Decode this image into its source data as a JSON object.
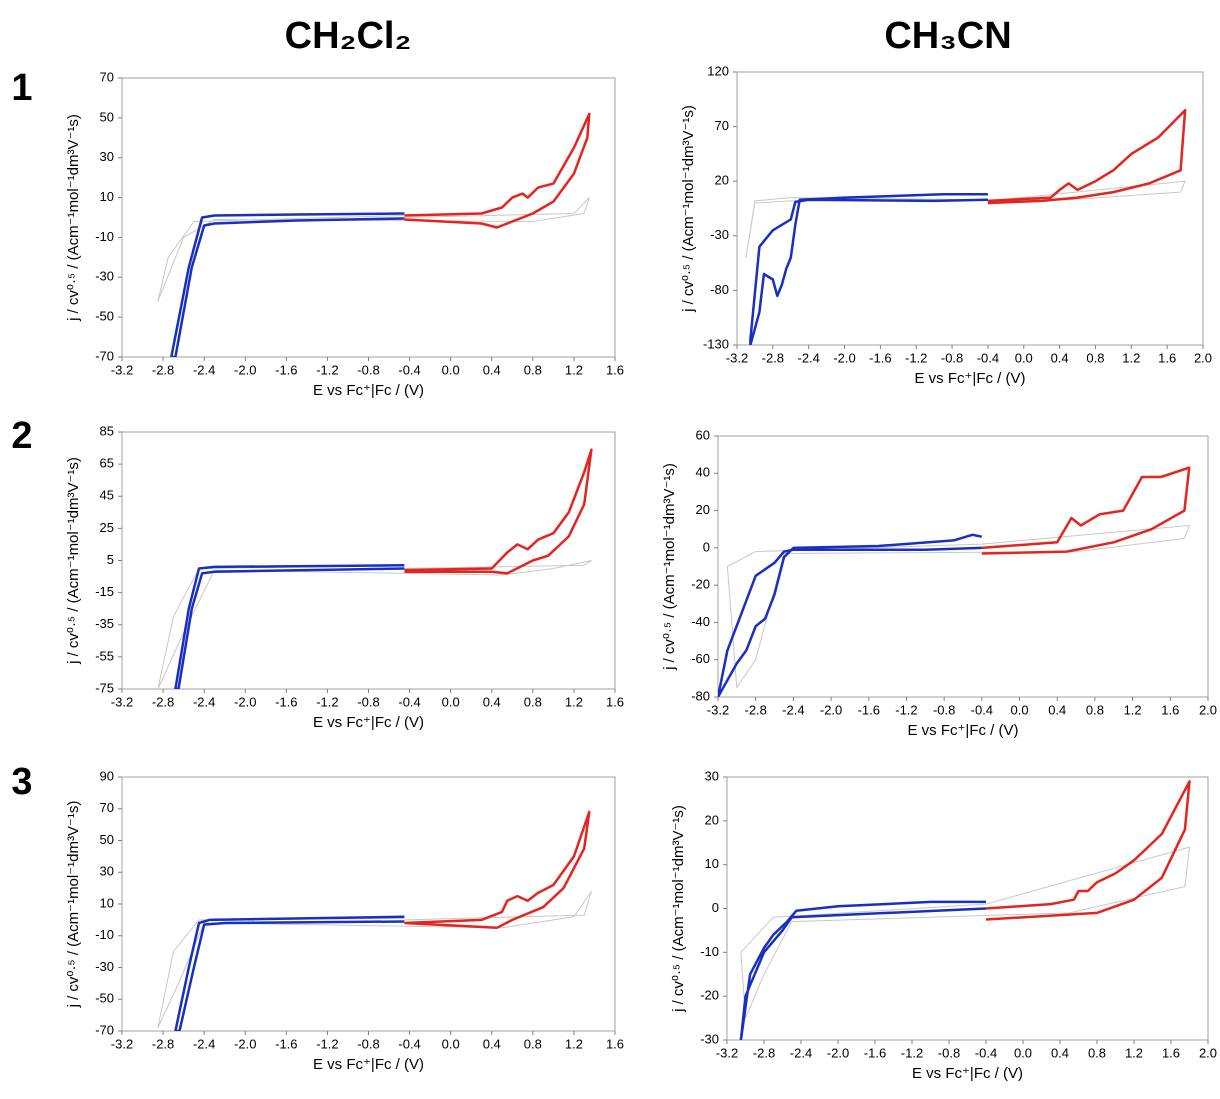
{
  "columns": [
    "CH₂Cl₂",
    "CH₃CN"
  ],
  "rows": [
    "1",
    "2",
    "3"
  ],
  "chart_data": [
    {
      "type": "line",
      "xlabel": "E vs Fc⁺|Fc / (V)",
      "ylabel": "j / cv⁰·⁵ / (Acm⁻¹mol⁻¹dm³V⁻¹s)",
      "xlim": [
        -3.2,
        1.6
      ],
      "ylim": [
        -70,
        70
      ],
      "xticks": [
        -3.2,
        -2.8,
        -2.4,
        {
          "value": -2,
          "label": "-2.0"
        },
        -1.6,
        -1.2,
        -0.8,
        -0.4,
        {
          "value": 0,
          "label": "0.0"
        },
        0.4,
        0.8,
        1.2,
        1.6
      ],
      "yticks": [
        -70,
        -50,
        -30,
        -10,
        10,
        30,
        50,
        70
      ],
      "series": [
        {
          "color": "#c8c8c8",
          "line_width": 1,
          "x": [
            -0.45,
            1.2,
            1.35,
            1.3,
            0.8,
            -2.3,
            -2.6,
            -2.85,
            -2.75,
            -2.5,
            -0.45
          ],
          "values": [
            0,
            2,
            10,
            2,
            -2,
            -1,
            -10,
            -42,
            -20,
            -2,
            1
          ]
        },
        {
          "color": "#1a2fc0",
          "line_width": 2.5,
          "x": [
            -0.45,
            -1.5,
            -2.3,
            -2.42,
            -2.55,
            -2.72,
            -2.68,
            -2.52,
            -2.4,
            -2.3,
            -1.5,
            -0.45
          ],
          "values": [
            2,
            1.5,
            1,
            0,
            -25,
            -70,
            -70,
            -25,
            -4,
            -3,
            -1.5,
            -0.5
          ]
        },
        {
          "color": "#e3241f",
          "line_width": 2.5,
          "x": [
            -0.45,
            0.3,
            0.5,
            0.6,
            0.7,
            0.75,
            0.85,
            1.0,
            1.2,
            1.35,
            1.33,
            1.2,
            1.0,
            0.8,
            0.6,
            0.45,
            0.3,
            -0.45
          ],
          "values": [
            1,
            2,
            5,
            10,
            12,
            10,
            15,
            17,
            35,
            52,
            40,
            22,
            8,
            2,
            -2,
            -5,
            -3,
            -1
          ]
        }
      ]
    },
    {
      "type": "line",
      "xlabel": "E vs Fc⁺|Fc / (V)",
      "ylabel": "j / cv⁰·⁵ / (Acm⁻¹mol⁻¹dm³V⁻¹s)",
      "xlim": [
        -3.2,
        2
      ],
      "ylim": [
        -130,
        120
      ],
      "xticks": [
        -3.2,
        -2.8,
        -2.4,
        {
          "value": -2,
          "label": "-2.0"
        },
        -1.6,
        -1.2,
        -0.8,
        -0.4,
        {
          "value": 0,
          "label": "0.0"
        },
        0.4,
        0.8,
        1.2,
        1.6,
        {
          "value": 2,
          "label": "2.0"
        }
      ],
      "yticks": [
        -130,
        -80,
        -30,
        20,
        70,
        120
      ],
      "series": [
        {
          "color": "#c8c8c8",
          "line_width": 1,
          "x": [
            -0.4,
            1.8,
            1.75,
            0.5,
            -2.6,
            -3.0,
            -3.1,
            -3.0,
            -2.6,
            -0.4
          ],
          "values": [
            2,
            20,
            10,
            3,
            2,
            0,
            -50,
            2,
            5,
            3
          ]
        },
        {
          "color": "#1a2fc0",
          "line_width": 2.5,
          "x": [
            -0.4,
            -0.9,
            -2.0,
            -2.5,
            -2.55,
            -2.6,
            -2.65,
            -2.7,
            -2.75,
            -2.8,
            -2.9,
            -2.95,
            -3.05,
            -3.05,
            -2.95,
            -2.8,
            -2.6,
            -2.55,
            -2.4,
            -1.0,
            -0.4
          ],
          "values": [
            8,
            8,
            5,
            3,
            -20,
            -50,
            -60,
            -75,
            -85,
            -70,
            -65,
            -100,
            -130,
            -125,
            -40,
            -25,
            -15,
            1,
            3,
            2,
            3
          ]
        },
        {
          "color": "#e3241f",
          "line_width": 2.5,
          "x": [
            -0.4,
            0.3,
            0.4,
            0.5,
            0.6,
            0.8,
            0.9,
            1.0,
            1.2,
            1.5,
            1.8,
            1.75,
            1.4,
            1.0,
            0.6,
            0.2,
            -0.4
          ],
          "values": [
            2,
            5,
            12,
            18,
            12,
            20,
            25,
            30,
            45,
            60,
            85,
            30,
            18,
            10,
            5,
            2,
            0
          ]
        }
      ]
    },
    {
      "type": "line",
      "xlabel": "E vs Fc⁺|Fc / (V)",
      "ylabel": "j / cv⁰·⁵ / (Acm⁻¹mol⁻¹dm³V⁻¹s)",
      "xlim": [
        -3.2,
        1.6
      ],
      "ylim": [
        -75,
        85
      ],
      "xticks": [
        -3.2,
        -2.8,
        -2.4,
        {
          "value": -2,
          "label": "-2.0"
        },
        -1.6,
        -1.2,
        -0.8,
        -0.4,
        {
          "value": 0,
          "label": "0.0"
        },
        0.4,
        0.8,
        1.2,
        1.6
      ],
      "yticks": [
        -75,
        -55,
        -35,
        -15,
        5,
        25,
        45,
        65,
        85
      ],
      "series": [
        {
          "color": "#c8c8c8",
          "line_width": 1,
          "x": [
            -0.45,
            1.3,
            1.37,
            1.0,
            0.5,
            -2.3,
            -2.6,
            -2.85,
            -2.7,
            -2.45,
            -0.45
          ],
          "values": [
            0,
            2,
            5,
            0,
            -4,
            -1,
            -40,
            -75,
            -30,
            0,
            2
          ]
        },
        {
          "color": "#1a2fc0",
          "line_width": 2.5,
          "x": [
            -0.45,
            -2.3,
            -2.45,
            -2.55,
            -2.68,
            -2.65,
            -2.52,
            -2.42,
            -2.3,
            -0.45
          ],
          "values": [
            2,
            1,
            0,
            -25,
            -75,
            -75,
            -25,
            -3,
            -2,
            0
          ]
        },
        {
          "color": "#e3241f",
          "line_width": 2.5,
          "x": [
            -0.45,
            0.4,
            0.55,
            0.65,
            0.75,
            0.85,
            1.0,
            1.15,
            1.3,
            1.37,
            1.3,
            1.15,
            0.95,
            0.8,
            0.55,
            0.4,
            -0.45
          ],
          "values": [
            -1,
            0,
            10,
            15,
            12,
            18,
            22,
            35,
            60,
            74,
            40,
            20,
            8,
            5,
            -3,
            -2,
            -2
          ]
        }
      ]
    },
    {
      "type": "line",
      "xlabel": "E vs Fc⁺|Fc / (V)",
      "ylabel": "j / cv⁰·⁵ / (Acm⁻¹mol⁻¹dm³V⁻¹s)",
      "xlim": [
        -3.2,
        2
      ],
      "ylim": [
        -80,
        60
      ],
      "xticks": [
        -3.2,
        -2.8,
        -2.4,
        {
          "value": -2,
          "label": "-2.0"
        },
        -1.6,
        -1.2,
        -0.8,
        -0.4,
        {
          "value": 0,
          "label": "0.0"
        },
        0.4,
        0.8,
        1.2,
        1.6,
        {
          "value": 2,
          "label": "2.0"
        }
      ],
      "yticks": [
        -80,
        -60,
        -40,
        -20,
        0,
        20,
        40,
        60
      ],
      "series": [
        {
          "color": "#c8c8c8",
          "line_width": 1,
          "x": [
            -0.4,
            1.8,
            1.75,
            0.6,
            -2.5,
            -2.8,
            -3.0,
            -3.1,
            -2.8,
            -0.4
          ],
          "values": [
            2,
            12,
            5,
            -2,
            -3,
            -60,
            -75,
            -10,
            -2,
            2
          ]
        },
        {
          "color": "#1a2fc0",
          "line_width": 2.5,
          "x": [
            -0.4,
            -0.5,
            -0.7,
            -1.5,
            -2.4,
            -2.5,
            -2.6,
            -2.7,
            -2.8,
            -2.9,
            -3.0,
            -3.2,
            -3.1,
            -2.95,
            -2.8,
            -2.6,
            -2.5,
            -2.4,
            -1.0,
            -0.4
          ],
          "values": [
            6,
            7,
            4,
            1,
            0,
            -5,
            -25,
            -38,
            -42,
            -55,
            -62,
            -80,
            -55,
            -35,
            -15,
            -8,
            -2,
            -1,
            -1,
            0
          ]
        },
        {
          "color": "#e3241f",
          "line_width": 2.5,
          "x": [
            -0.4,
            0.4,
            0.55,
            0.65,
            0.75,
            0.85,
            1.1,
            1.3,
            1.5,
            1.8,
            1.75,
            1.4,
            1.0,
            0.5,
            -0.4
          ],
          "values": [
            0,
            3,
            16,
            12,
            15,
            18,
            20,
            38,
            38,
            43,
            20,
            10,
            3,
            -2,
            -3
          ]
        }
      ]
    },
    {
      "type": "line",
      "xlabel": "E vs Fc⁺|Fc / (V)",
      "ylabel": "j / cv⁰·⁵ / (Acm⁻¹mol⁻¹dm³V⁻¹s)",
      "xlim": [
        -3.2,
        1.6
      ],
      "ylim": [
        -70,
        90
      ],
      "xticks": [
        -3.2,
        -2.8,
        -2.4,
        {
          "value": -2,
          "label": "-2.0"
        },
        -1.6,
        -1.2,
        -0.8,
        -0.4,
        {
          "value": 0,
          "label": "0.0"
        },
        0.4,
        0.8,
        1.2,
        1.6
      ],
      "yticks": [
        -70,
        -50,
        -30,
        -10,
        10,
        30,
        50,
        70,
        90
      ],
      "series": [
        {
          "color": "#c8c8c8",
          "line_width": 1,
          "x": [
            -0.45,
            1.3,
            1.37,
            1.2,
            0.5,
            -2.4,
            -2.65,
            -2.85,
            -2.7,
            -2.45,
            -0.45
          ],
          "values": [
            0,
            3,
            18,
            2,
            -5,
            -2,
            -40,
            -68,
            -20,
            0,
            1
          ]
        },
        {
          "color": "#1a2fc0",
          "line_width": 2.5,
          "x": [
            -0.45,
            -2.35,
            -2.45,
            -2.55,
            -2.68,
            -2.64,
            -2.5,
            -2.4,
            -2.2,
            -0.45
          ],
          "values": [
            2,
            0,
            -2,
            -30,
            -70,
            -70,
            -30,
            -3,
            -2,
            -1
          ]
        },
        {
          "color": "#e3241f",
          "line_width": 2.5,
          "x": [
            -0.45,
            0.3,
            0.5,
            0.55,
            0.65,
            0.75,
            0.85,
            1.0,
            1.2,
            1.35,
            1.3,
            1.1,
            0.9,
            0.6,
            0.45,
            -0.45
          ],
          "values": [
            -2,
            0,
            5,
            12,
            15,
            12,
            17,
            22,
            40,
            68,
            45,
            20,
            8,
            0,
            -5,
            -2
          ]
        }
      ]
    },
    {
      "type": "line",
      "xlabel": "E vs Fc⁺|Fc / (V)",
      "ylabel": "j / cv⁰·⁵ / (Acm⁻¹mol⁻¹dm³V⁻¹s)",
      "xlim": [
        -3.2,
        2
      ],
      "ylim": [
        -30,
        30
      ],
      "xticks": [
        -3.2,
        -2.8,
        -2.4,
        {
          "value": -2,
          "label": "-2.0"
        },
        -1.6,
        -1.2,
        -0.8,
        -0.4,
        {
          "value": 0,
          "label": "0.0"
        },
        0.4,
        0.8,
        1.2,
        1.6,
        {
          "value": 2,
          "label": "2.0"
        }
      ],
      "yticks": [
        -30,
        -20,
        -10,
        0,
        10,
        20,
        30
      ],
      "series": [
        {
          "color": "#c8c8c8",
          "line_width": 1,
          "x": [
            -0.4,
            1.8,
            1.75,
            0.5,
            -2.5,
            -2.8,
            -3.0,
            -3.05,
            -2.7,
            -0.4
          ],
          "values": [
            1,
            14,
            5,
            -1,
            -3,
            -15,
            -25,
            -10,
            -2,
            1
          ]
        },
        {
          "color": "#1a2fc0",
          "line_width": 2.5,
          "x": [
            -0.4,
            -1.0,
            -2.0,
            -2.45,
            -2.55,
            -2.7,
            -2.8,
            -2.95,
            -3.05,
            -3.0,
            -2.8,
            -2.6,
            -2.5,
            -2.0,
            -0.4
          ],
          "values": [
            1.5,
            1.5,
            0.5,
            -0.5,
            -3,
            -6,
            -9,
            -15,
            -30,
            -20,
            -10,
            -5,
            -2,
            -1.5,
            0
          ]
        },
        {
          "color": "#e3241f",
          "line_width": 2.5,
          "x": [
            -0.4,
            0.3,
            0.55,
            0.6,
            0.7,
            0.8,
            1.0,
            1.2,
            1.5,
            1.8,
            1.75,
            1.5,
            1.2,
            0.8,
            0.4,
            -0.4
          ],
          "values": [
            0,
            1,
            2,
            4,
            4,
            6,
            8,
            11,
            17,
            29,
            18,
            7,
            2,
            -1,
            -1.5,
            -2.5
          ]
        }
      ]
    }
  ]
}
